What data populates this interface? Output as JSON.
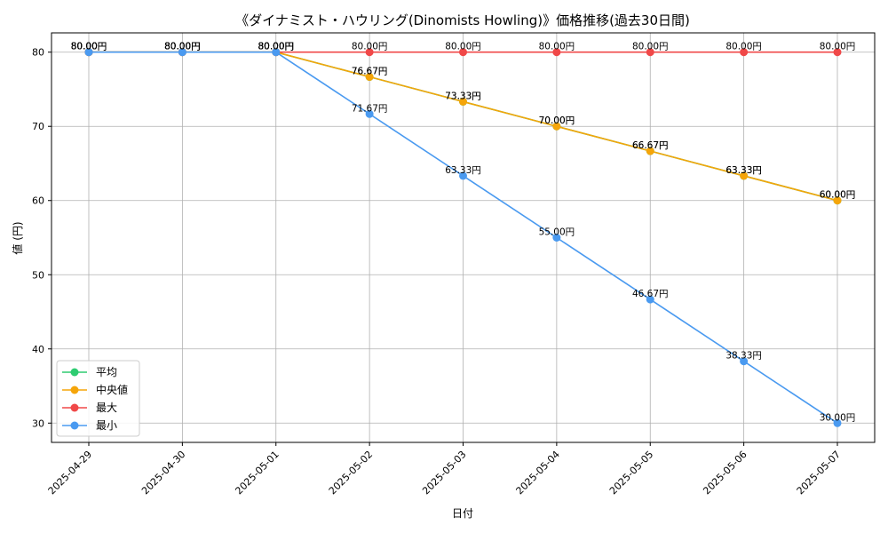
{
  "chart_data": {
    "type": "line",
    "title": "《ダイナミスト・ハウリング(Dinomists Howling)》価格推移(過去30日間)",
    "xlabel": "日付",
    "ylabel": "値 (円)",
    "x": [
      "2025-04-29",
      "2025-04-30",
      "2025-05-01",
      "2025-05-02",
      "2025-05-03",
      "2025-05-04",
      "2025-05-05",
      "2025-05-06",
      "2025-05-07"
    ],
    "yticks": [
      30,
      40,
      50,
      60,
      70,
      80
    ],
    "ylim": [
      27.4,
      82.6
    ],
    "grid": true,
    "legend_position": "bottom-left",
    "value_suffix": "円",
    "series": [
      {
        "name": "平均",
        "color": "#2ecc71",
        "values": [
          80.0,
          80.0,
          80.0,
          76.67,
          73.33,
          70.0,
          66.67,
          63.33,
          60.0
        ]
      },
      {
        "name": "中央値",
        "color": "#f5a50a",
        "values": [
          80.0,
          80.0,
          80.0,
          76.67,
          73.33,
          70.0,
          66.67,
          63.33,
          60.0
        ]
      },
      {
        "name": "最大",
        "color": "#f04848",
        "values": [
          80.0,
          80.0,
          80.0,
          80.0,
          80.0,
          80.0,
          80.0,
          80.0,
          80.0
        ]
      },
      {
        "name": "最小",
        "color": "#4a9af0",
        "values": [
          80.0,
          80.0,
          80.0,
          71.67,
          63.33,
          55.0,
          46.67,
          38.33,
          30.0
        ]
      }
    ]
  }
}
